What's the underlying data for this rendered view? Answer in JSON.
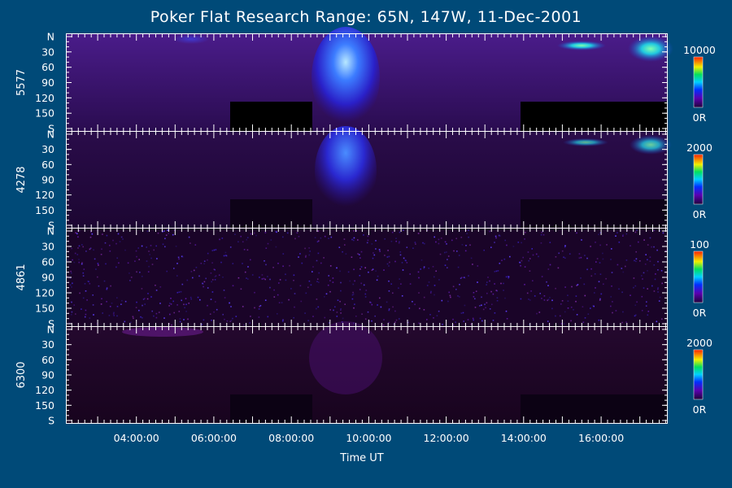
{
  "chart_data": {
    "type": "heatmap",
    "title": "Poker Flat Research Range: 65N, 147W, 11-Dec-2001",
    "xlabel": "Time UT",
    "x_range_hours": [
      2.2,
      17.7
    ],
    "x_ticks": [
      "04:00:00",
      "06:00:00",
      "08:00:00",
      "10:00:00",
      "12:00:00",
      "14:00:00",
      "16:00:00"
    ],
    "y_tick_labels": [
      "N",
      "30",
      "60",
      "90",
      "120",
      "150",
      "S"
    ],
    "panels": [
      {
        "ylabel": "5577",
        "colorbar": {
          "max_label": "10000",
          "min_label": "0R"
        }
      },
      {
        "ylabel": "4278",
        "colorbar": {
          "max_label": "2000",
          "min_label": "0R"
        }
      },
      {
        "ylabel": "4861",
        "colorbar": {
          "max_label": "100",
          "min_label": "0R"
        }
      },
      {
        "ylabel": "6300",
        "colorbar": {
          "max_label": "2000",
          "min_label": "0R"
        }
      }
    ]
  },
  "colors": {
    "background": "#004a78",
    "panel_base": "#1c0830",
    "aurora": "#3a6cff",
    "aurora_core": "#9ad8ff"
  }
}
